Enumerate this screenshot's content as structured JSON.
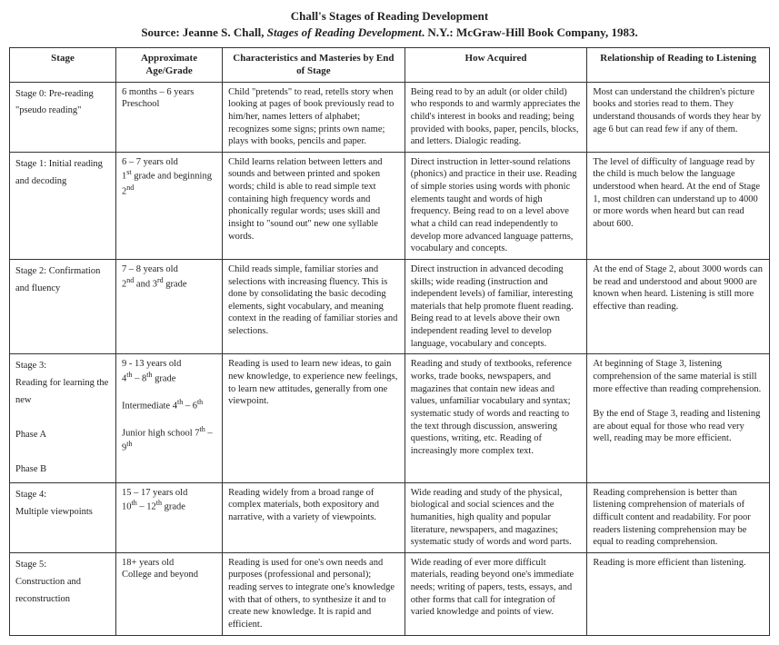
{
  "title": "Chall's Stages of Reading Development",
  "source_prefix": "Source: Jeanne S. Chall, ",
  "source_italic": "Stages of Reading Development",
  "source_suffix": ". N.Y.: McGraw-Hill Book Company, 1983.",
  "columns": [
    "Stage",
    "Approximate Age/Grade",
    "Characteristics and Masteries by End of Stage",
    "How Acquired",
    "Relationship of Reading to Listening"
  ],
  "rows": [
    {
      "stage": "Stage 0: Pre-reading \"pseudo reading\"",
      "age": "6 months – 6 years<br>Preschool",
      "char": "Child \"pretends\" to read, retells story when looking at pages of book previously read to him/her, names letters of alphabet; recognizes some signs; prints own name; plays with books, pencils and paper.",
      "how": "Being read to by an adult (or older child) who responds to and warmly appreciates the child's interest in books and reading; being provided with books, paper, pencils, blocks, and letters. Dialogic reading.",
      "rel": "Most can understand the children's picture books and stories read to them. They understand thousands of words they hear by age 6 but can read few if any of them."
    },
    {
      "stage": "Stage 1: Initial reading and decoding",
      "age": "6 – 7 years old<br>1<sup>st</sup> grade and beginning 2<sup>nd</sup>",
      "char": "Child learns relation between letters and sounds and between printed and spoken words; child is able to read simple text containing high frequency words and phonically regular words; uses skill and insight to \"sound out\" new one syllable words.",
      "how": "Direct instruction in letter-sound relations (phonics) and practice in their use. Reading of simple stories using words with phonic elements taught and words of high frequency. Being read to on a level above what a child can read independently to develop more advanced language patterns, vocabulary and concepts.",
      "rel": "The level of difficulty of language read by the child is much below the language understood when heard. At the end of Stage 1, most children can understand up to 4000 or more words when heard but can read about 600."
    },
    {
      "stage": "Stage 2: Confirmation and fluency",
      "age": "7 – 8 years old<br>2<sup>nd</sup> and 3<sup>rd</sup> grade",
      "char": "Child reads simple, familiar stories and selections with increasing fluency. This is done by consolidating the basic decoding elements, sight vocabulary, and meaning context in the reading of familiar stories and selections.",
      "how": "Direct instruction in advanced decoding skills; wide reading (instruction and independent levels) of familiar, interesting materials that help promote fluent reading. Being read to at levels above their own independent reading level to develop language, vocabulary and concepts.",
      "rel": "At the end of Stage 2, about 3000 words can be read and understood and about 9000 are known when heard. Listening is still more effective than reading."
    },
    {
      "stage": "Stage 3:<br>Reading for learning the new<br><br>Phase A<br><br>Phase B",
      "age": "9 - 13 years old<br>4<sup>th</sup> – 8<sup>th</sup> grade<br><br>Intermediate 4<sup>th</sup> – 6<sup>th</sup><br><br>Junior high school 7<sup>th</sup> – 9<sup>th</sup>",
      "char": "Reading is used to learn new ideas, to gain new knowledge, to experience new feelings, to learn new attitudes, generally from one viewpoint.",
      "how": "Reading and study of textbooks, reference works, trade books, newspapers, and magazines that contain new ideas and values, unfamiliar vocabulary and syntax; systematic study of words and reacting to the text through discussion, answering questions, writing, etc. Reading of increasingly more complex text.",
      "rel": "At beginning of Stage 3, listening comprehension of the same material is still more effective than reading comprehension.<br><br>By the end of Stage 3, reading and listening are about equal for those who read very well, reading may be more efficient."
    },
    {
      "stage": "Stage 4:<br>Multiple viewpoints",
      "age": "15 – 17 years old<br>10<sup>th</sup> – 12<sup>th</sup> grade",
      "char": "Reading widely from a broad range of complex materials, both expository and narrative, with a variety of viewpoints.",
      "how": "Wide reading and study of the physical, biological and social sciences and the humanities, high quality and popular literature, newspapers, and magazines; systematic study of words and word parts.",
      "rel": "Reading comprehension is better than listening comprehension of materials of difficult content and readability. For poor readers listening comprehension may be equal to reading comprehension."
    },
    {
      "stage": "Stage 5:<br>Construction and reconstruction",
      "age": "18+ years old<br>College and beyond",
      "char": "Reading is used for one's own needs and purposes (professional and personal); reading serves to integrate one's knowledge with that of others, to synthesize it and to create new knowledge. It is rapid and efficient.",
      "how": "Wide reading of ever more difficult materials, reading beyond one's immediate needs; writing of papers, tests, essays, and other forms that call for integration of varied knowledge and points of view.",
      "rel": "Reading is more efficient than listening."
    }
  ]
}
